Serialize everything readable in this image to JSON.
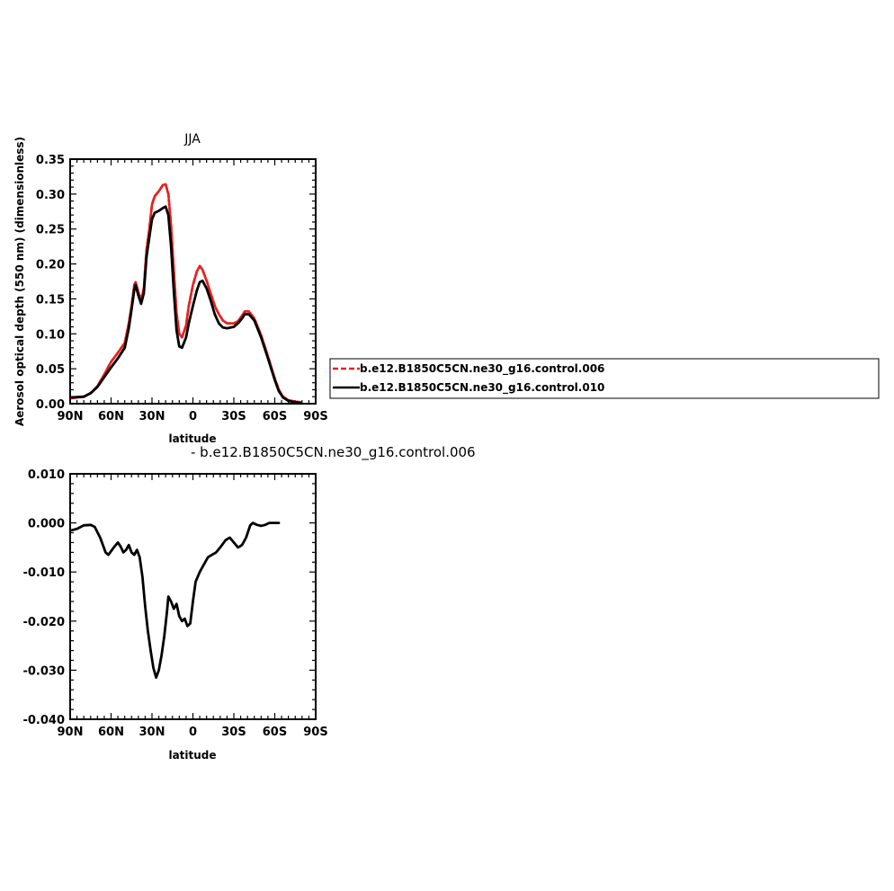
{
  "chart_data": [
    {
      "type": "line",
      "title": "JJA",
      "xlabel": "latitude",
      "ylabel": "Aerosol optical depth (550 nm) (dimensionless)",
      "xlim": [
        90,
        -90
      ],
      "ylim": [
        0,
        0.35
      ],
      "x_ticks": [
        {
          "value": 90,
          "label": "90N"
        },
        {
          "value": 60,
          "label": "60N"
        },
        {
          "value": 30,
          "label": "30N"
        },
        {
          "value": 0,
          "label": "0"
        },
        {
          "value": -30,
          "label": "30S"
        },
        {
          "value": -60,
          "label": "60S"
        },
        {
          "value": -90,
          "label": "90S"
        }
      ],
      "y_ticks": [
        {
          "value": 0.35,
          "label": "0.35"
        },
        {
          "value": 0.3,
          "label": "0.30"
        },
        {
          "value": 0.25,
          "label": "0.25"
        },
        {
          "value": 0.2,
          "label": "0.20"
        },
        {
          "value": 0.15,
          "label": "0.15"
        },
        {
          "value": 0.1,
          "label": "0.10"
        },
        {
          "value": 0.05,
          "label": "0.05"
        },
        {
          "value": 0.0,
          "label": "0.00"
        }
      ],
      "legend": {
        "placement": "right",
        "entries": [
          {
            "label": "b.e12.B1850C5CN.ne30_g16.control.006",
            "color": "#ff0000",
            "dash": true
          },
          {
            "label": "b.e12.B1850C5CN.ne30_g16.control.010",
            "color": "#000000",
            "dash": false
          }
        ]
      },
      "series": [
        {
          "name": "b.e12.B1850C5CN.ne30_g16.control.006",
          "color": "#e8201e",
          "points": [
            [
              89,
              0.008
            ],
            [
              80,
              0.01
            ],
            [
              75,
              0.015
            ],
            [
              70,
              0.025
            ],
            [
              65,
              0.042
            ],
            [
              60,
              0.06
            ],
            [
              55,
              0.073
            ],
            [
              50,
              0.087
            ],
            [
              47,
              0.115
            ],
            [
              45,
              0.14
            ],
            [
              43,
              0.17
            ],
            [
              42,
              0.174
            ],
            [
              40,
              0.16
            ],
            [
              38,
              0.148
            ],
            [
              36,
              0.165
            ],
            [
              34,
              0.22
            ],
            [
              32,
              0.25
            ],
            [
              30,
              0.285
            ],
            [
              28,
              0.297
            ],
            [
              25,
              0.304
            ],
            [
              22,
              0.313
            ],
            [
              20,
              0.314
            ],
            [
              18,
              0.3
            ],
            [
              16,
              0.255
            ],
            [
              14,
              0.19
            ],
            [
              12,
              0.13
            ],
            [
              10,
              0.1
            ],
            [
              8,
              0.095
            ],
            [
              5,
              0.112
            ],
            [
              3,
              0.14
            ],
            [
              0,
              0.17
            ],
            [
              -3,
              0.19
            ],
            [
              -5,
              0.197
            ],
            [
              -7,
              0.192
            ],
            [
              -10,
              0.176
            ],
            [
              -13,
              0.158
            ],
            [
              -16,
              0.14
            ],
            [
              -19,
              0.128
            ],
            [
              -22,
              0.119
            ],
            [
              -25,
              0.115
            ],
            [
              -30,
              0.115
            ],
            [
              -33,
              0.118
            ],
            [
              -36,
              0.126
            ],
            [
              -38,
              0.132
            ],
            [
              -41,
              0.132
            ],
            [
              -45,
              0.122
            ],
            [
              -50,
              0.098
            ],
            [
              -55,
              0.068
            ],
            [
              -60,
              0.036
            ],
            [
              -63,
              0.02
            ],
            [
              -66,
              0.01
            ],
            [
              -70,
              0.005
            ],
            [
              -75,
              0.003
            ],
            [
              -79,
              0.002
            ]
          ]
        },
        {
          "name": "b.e12.B1850C5CN.ne30_g16.control.010",
          "color": "#000000",
          "points": [
            [
              89,
              0.009
            ],
            [
              80,
              0.01
            ],
            [
              75,
              0.015
            ],
            [
              70,
              0.024
            ],
            [
              65,
              0.038
            ],
            [
              60,
              0.052
            ],
            [
              55,
              0.065
            ],
            [
              50,
              0.08
            ],
            [
              47,
              0.108
            ],
            [
              45,
              0.135
            ],
            [
              43,
              0.163
            ],
            [
              42,
              0.17
            ],
            [
              40,
              0.155
            ],
            [
              38,
              0.143
            ],
            [
              36,
              0.158
            ],
            [
              34,
              0.21
            ],
            [
              32,
              0.238
            ],
            [
              30,
              0.264
            ],
            [
              28,
              0.273
            ],
            [
              25,
              0.276
            ],
            [
              22,
              0.28
            ],
            [
              20,
              0.282
            ],
            [
              18,
              0.27
            ],
            [
              16,
              0.225
            ],
            [
              14,
              0.16
            ],
            [
              12,
              0.105
            ],
            [
              10,
              0.082
            ],
            [
              8,
              0.08
            ],
            [
              5,
              0.095
            ],
            [
              3,
              0.115
            ],
            [
              0,
              0.14
            ],
            [
              -3,
              0.163
            ],
            [
              -5,
              0.174
            ],
            [
              -7,
              0.176
            ],
            [
              -10,
              0.165
            ],
            [
              -13,
              0.148
            ],
            [
              -16,
              0.128
            ],
            [
              -19,
              0.115
            ],
            [
              -22,
              0.109
            ],
            [
              -25,
              0.108
            ],
            [
              -30,
              0.11
            ],
            [
              -33,
              0.115
            ],
            [
              -36,
              0.122
            ],
            [
              -38,
              0.128
            ],
            [
              -41,
              0.128
            ],
            [
              -45,
              0.119
            ],
            [
              -50,
              0.095
            ],
            [
              -55,
              0.065
            ],
            [
              -60,
              0.034
            ],
            [
              -63,
              0.018
            ],
            [
              -66,
              0.009
            ],
            [
              -70,
              0.004
            ],
            [
              -75,
              0.002
            ],
            [
              -79,
              0.001
            ]
          ]
        }
      ]
    },
    {
      "type": "line",
      "title": "- b.e12.B1850C5CN.ne30_g16.control.006",
      "xlabel": "latitude",
      "ylabel": "",
      "xlim": [
        90,
        -90
      ],
      "ylim": [
        -0.04,
        0.01
      ],
      "x_ticks": [
        {
          "value": 90,
          "label": "90N"
        },
        {
          "value": 60,
          "label": "60N"
        },
        {
          "value": 30,
          "label": "30N"
        },
        {
          "value": 0,
          "label": "0"
        },
        {
          "value": -30,
          "label": "30S"
        },
        {
          "value": -60,
          "label": "60S"
        },
        {
          "value": -90,
          "label": "90S"
        }
      ],
      "y_ticks": [
        {
          "value": 0.01,
          "label": "0.010"
        },
        {
          "value": 0.0,
          "label": "0.000"
        },
        {
          "value": -0.01,
          "label": "-0.010"
        },
        {
          "value": -0.02,
          "label": "-0.020"
        },
        {
          "value": -0.03,
          "label": "-0.030"
        },
        {
          "value": -0.04,
          "label": "-0.040"
        }
      ],
      "series": [
        {
          "color": "#000000",
          "points": [
            [
              89,
              -0.0015
            ],
            [
              85,
              -0.0012
            ],
            [
              80,
              -0.0005
            ],
            [
              75,
              -0.0004
            ],
            [
              72,
              -0.0008
            ],
            [
              68,
              -0.003
            ],
            [
              64,
              -0.006
            ],
            [
              62,
              -0.0065
            ],
            [
              58,
              -0.005
            ],
            [
              55,
              -0.004
            ],
            [
              53,
              -0.0048
            ],
            [
              51,
              -0.006
            ],
            [
              49,
              -0.0055
            ],
            [
              47,
              -0.0045
            ],
            [
              45,
              -0.006
            ],
            [
              43,
              -0.0065
            ],
            [
              41,
              -0.0055
            ],
            [
              39,
              -0.007
            ],
            [
              37,
              -0.011
            ],
            [
              35,
              -0.017
            ],
            [
              33,
              -0.022
            ],
            [
              31,
              -0.026
            ],
            [
              29,
              -0.0295
            ],
            [
              27,
              -0.0315
            ],
            [
              25,
              -0.03
            ],
            [
              23,
              -0.027
            ],
            [
              21,
              -0.023
            ],
            [
              19,
              -0.018
            ],
            [
              18,
              -0.015
            ],
            [
              16,
              -0.016
            ],
            [
              14,
              -0.0175
            ],
            [
              12,
              -0.0165
            ],
            [
              10,
              -0.019
            ],
            [
              8,
              -0.02
            ],
            [
              6,
              -0.0195
            ],
            [
              4,
              -0.021
            ],
            [
              2,
              -0.0205
            ],
            [
              0,
              -0.016
            ],
            [
              -2,
              -0.012
            ],
            [
              -5,
              -0.01
            ],
            [
              -8,
              -0.0085
            ],
            [
              -11,
              -0.007
            ],
            [
              -14,
              -0.0065
            ],
            [
              -17,
              -0.006
            ],
            [
              -20,
              -0.005
            ],
            [
              -24,
              -0.0035
            ],
            [
              -27,
              -0.003
            ],
            [
              -30,
              -0.004
            ],
            [
              -33,
              -0.005
            ],
            [
              -36,
              -0.0045
            ],
            [
              -39,
              -0.003
            ],
            [
              -42,
              -0.0005
            ],
            [
              -44,
              0.0
            ],
            [
              -47,
              -0.0004
            ],
            [
              -50,
              -0.0006
            ],
            [
              -53,
              -0.0004
            ],
            [
              -56,
              0.0
            ],
            [
              -60,
              0.0
            ],
            [
              -63,
              0.0
            ]
          ]
        }
      ]
    }
  ]
}
